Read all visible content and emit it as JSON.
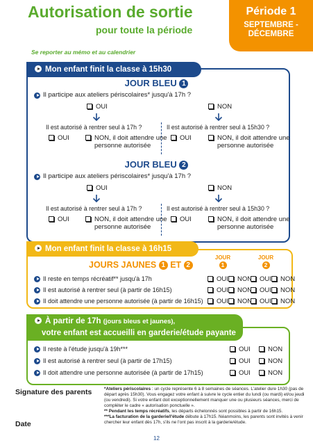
{
  "header": {
    "title": "Autorisation de sortie",
    "subtitle": "pour toute la période",
    "period": "Période 1",
    "months": "SEPTEMBRE - DÉCEMBRE"
  },
  "note": "Se reporter au mémo et au calendrier",
  "section1": {
    "title": "Mon enfant finit la classe à 15h30",
    "days": [
      {
        "label": "JOUR BLEU",
        "number": "1",
        "question": "Il participe aux ateliers périscolaires* jusqu'à 17h ?",
        "yes": "OUI",
        "no": "NON",
        "left": {
          "question": "Il est autorisé à rentrer seul à 17h ?",
          "yes": "OUI",
          "no": "NON, il doit attendre une personne autorisée"
        },
        "right": {
          "question": "Il est autorisé à rentrer seul à 15h30 ?",
          "yes": "OUI",
          "no": "NON, il doit attendre une personne autorisée"
        }
      },
      {
        "label": "JOUR BLEU",
        "number": "2",
        "question": "Il participe aux ateliers périscolaires* jusqu'à 17h ?",
        "yes": "OUI",
        "no": "NON",
        "left": {
          "question": "Il est autorisé à rentrer seul à 17h ?",
          "yes": "OUI",
          "no": "NON, il doit attendre une personne autorisée"
        },
        "right": {
          "question": "Il est autorisé à rentrer seul à 15h30 ?",
          "yes": "OUI",
          "no": "NON, il doit attendre une personne autorisée"
        }
      }
    ]
  },
  "section2": {
    "title": "Mon enfant finit la classe à 16h15",
    "heading": "JOURS JAUNES",
    "day1": "1",
    "and": "ET",
    "day2": "2",
    "columns": [
      {
        "label": "JOUR",
        "number": "1"
      },
      {
        "label": "JOUR",
        "number": "2"
      }
    ],
    "yes": "OUI",
    "no": "NON",
    "rows": [
      "Il reste en temps récréatif** jusqu'à 17h",
      "Il est autorisé à rentrer seul (à partir de 16h15)",
      "Il doit attendre une personne autorisée (à partir de 16h15)"
    ]
  },
  "section3": {
    "title_main": "À partir de 17h",
    "title_paren": "(jours bleus et jaunes),",
    "title_line2": "votre enfant est accueilli en garderie/étude payante",
    "yes": "OUI",
    "no": "NON",
    "rows": [
      "Il reste à l'étude jusqu'à 19h***",
      "Il est autorisé à rentrer seul (à partir de 17h15)",
      "Il doit attendre une personne autorisée (à partir de 17h15)"
    ]
  },
  "footer": {
    "signature": "Signature des parents",
    "date": "Date",
    "notes": [
      {
        "lead": "*Ateliers périscolaires",
        "text": " : un cycle représente 6 à 8 semaines de séances. L'atelier dure 1h30 (pas de départ après 15h30). Vous engagez votre enfant à suivre le cycle entier du lundi (ou mardi) et/ou jeudi (ou vendredi). Si votre enfant doit exceptionnellement manquer une ou plusieurs séances, merci de compléter le cadre « autorisation ponctuelle »."
      },
      {
        "lead": "** Pendant les temps récréatifs",
        "text": ", les départs échelonnés sont possibles à partir de 16h15."
      },
      {
        "lead": "***La facturation de la garderie/l'étude",
        "text": " débute à 17h15. Néanmoins, les parents sont invités à venir chercher leur enfant dès 17h, s'ils ne l'ont pas inscrit à la garderie/étude."
      }
    ],
    "page": "12"
  }
}
